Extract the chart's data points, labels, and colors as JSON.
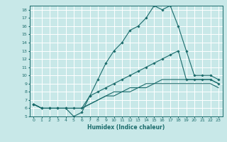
{
  "title": "",
  "xlabel": "Humidex (Indice chaleur)",
  "ylabel": "",
  "xlim": [
    -0.5,
    23.5
  ],
  "ylim": [
    5,
    18.5
  ],
  "xticks": [
    0,
    1,
    2,
    3,
    4,
    5,
    6,
    7,
    8,
    9,
    10,
    11,
    12,
    13,
    14,
    15,
    16,
    17,
    18,
    19,
    20,
    21,
    22,
    23
  ],
  "yticks": [
    5,
    6,
    7,
    8,
    9,
    10,
    11,
    12,
    13,
    14,
    15,
    16,
    17,
    18
  ],
  "background_color": "#c8e8e8",
  "grid_color": "#ffffff",
  "line_color": "#1a6b6b",
  "lines": [
    {
      "x": [
        0,
        1,
        2,
        3,
        4,
        5,
        6,
        7,
        8,
        9,
        10,
        11,
        12,
        13,
        14,
        15,
        16,
        17,
        18,
        19,
        20,
        21,
        22,
        23
      ],
      "y": [
        6.5,
        6.0,
        6.0,
        6.0,
        6.0,
        5.0,
        5.5,
        7.5,
        9.5,
        11.5,
        13.0,
        14.0,
        15.5,
        16.0,
        17.0,
        18.5,
        18.0,
        18.5,
        16.0,
        13.0,
        10.0,
        10.0,
        10.0,
        9.5
      ],
      "marker": true
    },
    {
      "x": [
        0,
        1,
        2,
        3,
        4,
        5,
        6,
        7,
        8,
        9,
        10,
        11,
        12,
        13,
        14,
        15,
        16,
        17,
        18,
        19,
        20,
        21,
        22,
        23
      ],
      "y": [
        6.5,
        6.0,
        6.0,
        6.0,
        6.0,
        6.0,
        6.0,
        7.5,
        8.0,
        8.5,
        9.0,
        9.5,
        10.0,
        10.5,
        11.0,
        11.5,
        12.0,
        12.5,
        13.0,
        9.5,
        9.5,
        9.5,
        9.5,
        9.0
      ],
      "marker": true
    },
    {
      "x": [
        0,
        1,
        2,
        3,
        4,
        5,
        6,
        7,
        8,
        9,
        10,
        11,
        12,
        13,
        14,
        15,
        16,
        17,
        18,
        19,
        20,
        21,
        22,
        23
      ],
      "y": [
        6.5,
        6.0,
        6.0,
        6.0,
        6.0,
        6.0,
        6.0,
        6.5,
        7.0,
        7.5,
        8.0,
        8.0,
        8.5,
        8.5,
        9.0,
        9.0,
        9.5,
        9.5,
        9.5,
        9.5,
        9.5,
        9.5,
        9.5,
        9.0
      ],
      "marker": false
    },
    {
      "x": [
        0,
        1,
        2,
        3,
        4,
        5,
        6,
        7,
        8,
        9,
        10,
        11,
        12,
        13,
        14,
        15,
        16,
        17,
        18,
        19,
        20,
        21,
        22,
        23
      ],
      "y": [
        6.5,
        6.0,
        6.0,
        6.0,
        6.0,
        6.0,
        6.0,
        6.5,
        7.0,
        7.5,
        7.5,
        8.0,
        8.0,
        8.5,
        8.5,
        9.0,
        9.0,
        9.0,
        9.0,
        9.0,
        9.0,
        9.0,
        9.0,
        8.5
      ],
      "marker": false
    }
  ]
}
